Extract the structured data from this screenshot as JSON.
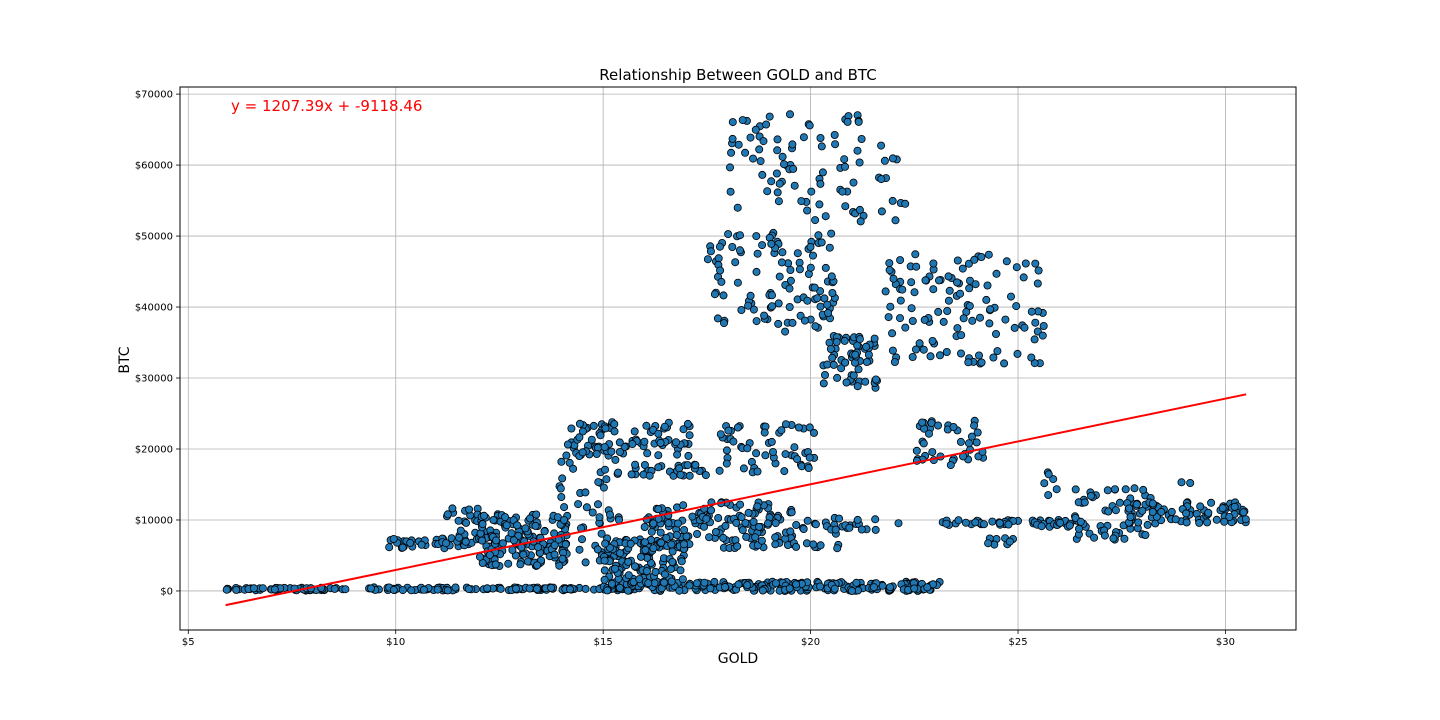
{
  "chart_data": {
    "type": "scatter",
    "title": "Relationship Between GOLD and BTC",
    "xlabel": "GOLD",
    "ylabel": "BTC",
    "xlim": [
      4.8,
      31.7
    ],
    "ylim": [
      -5500,
      71000
    ],
    "xticks": [
      5,
      10,
      15,
      20,
      25,
      30
    ],
    "xtick_labels": [
      "$5",
      "$10",
      "$15",
      "$20",
      "$25",
      "$30"
    ],
    "yticks": [
      0,
      10000,
      20000,
      30000,
      40000,
      50000,
      60000,
      70000
    ],
    "ytick_labels": [
      "$0",
      "$10000",
      "$20000",
      "$30000",
      "$40000",
      "$50000",
      "$60000",
      "$70000"
    ],
    "grid": true,
    "marker_color": "#1f77b4",
    "marker_edge": "#000000",
    "regression": {
      "slope": 1207.39,
      "intercept": -9118.46,
      "x_range": [
        5.9,
        30.5
      ],
      "color": "#ff0000",
      "label": "y = 1207.39x + -9118.46"
    },
    "clusters": [
      {
        "x": [
          5.9,
          8.8
        ],
        "y": [
          50,
          450
        ],
        "n": 60
      },
      {
        "x": [
          9.2,
          15.5
        ],
        "y": [
          80,
          500
        ],
        "n": 110
      },
      {
        "x": [
          15.0,
          23.2
        ],
        "y": [
          0,
          1300
        ],
        "n": 240
      },
      {
        "x": [
          9.8,
          11.8
        ],
        "y": [
          6000,
          7500
        ],
        "n": 35
      },
      {
        "x": [
          11.2,
          12.0
        ],
        "y": [
          6500,
          11800
        ],
        "n": 25
      },
      {
        "x": [
          12.0,
          14.2
        ],
        "y": [
          3500,
          11000
        ],
        "n": 170
      },
      {
        "x": [
          13.8,
          15.4
        ],
        "y": [
          4000,
          21000
        ],
        "n": 60
      },
      {
        "x": [
          14.1,
          17.1
        ],
        "y": [
          19000,
          24200
        ],
        "n": 80
      },
      {
        "x": [
          15.4,
          17.6
        ],
        "y": [
          16200,
          17800
        ],
        "n": 30
      },
      {
        "x": [
          15.0,
          17.0
        ],
        "y": [
          1000,
          7500
        ],
        "n": 130
      },
      {
        "x": [
          16.0,
          19.6
        ],
        "y": [
          6000,
          12500
        ],
        "n": 130
      },
      {
        "x": [
          17.8,
          20.2
        ],
        "y": [
          16500,
          23500
        ],
        "n": 55
      },
      {
        "x": [
          18.0,
          20.7
        ],
        "y": [
          6000,
          10500
        ],
        "n": 40
      },
      {
        "x": [
          17.5,
          20.6
        ],
        "y": [
          36500,
          50500
        ],
        "n": 110
      },
      {
        "x": [
          18.0,
          21.3
        ],
        "y": [
          52000,
          67500
        ],
        "n": 80
      },
      {
        "x": [
          20.3,
          21.6
        ],
        "y": [
          28500,
          36000
        ],
        "n": 60
      },
      {
        "x": [
          21.8,
          25.7
        ],
        "y": [
          32000,
          47500
        ],
        "n": 120
      },
      {
        "x": [
          22.4,
          24.2
        ],
        "y": [
          17500,
          24000
        ],
        "n": 40
      },
      {
        "x": [
          21.6,
          22.4
        ],
        "y": [
          50000,
          63500
        ],
        "n": 12
      },
      {
        "x": [
          20.6,
          22.2
        ],
        "y": [
          8600,
          10300
        ],
        "n": 14
      },
      {
        "x": [
          23.1,
          25.5
        ],
        "y": [
          9200,
          10000
        ],
        "n": 28
      },
      {
        "x": [
          24.1,
          25.0
        ],
        "y": [
          6500,
          7500
        ],
        "n": 8
      },
      {
        "x": [
          25.4,
          26.5
        ],
        "y": [
          9000,
          10000
        ],
        "n": 20
      },
      {
        "x": [
          25.6,
          26.0
        ],
        "y": [
          13200,
          17000
        ],
        "n": 6
      },
      {
        "x": [
          26.2,
          28.2
        ],
        "y": [
          7000,
          14500
        ],
        "n": 60
      },
      {
        "x": [
          27.5,
          30.5
        ],
        "y": [
          9500,
          12500
        ],
        "n": 80
      },
      {
        "x": [
          28.7,
          29.5
        ],
        "y": [
          15200,
          15600
        ],
        "n": 2
      }
    ]
  }
}
